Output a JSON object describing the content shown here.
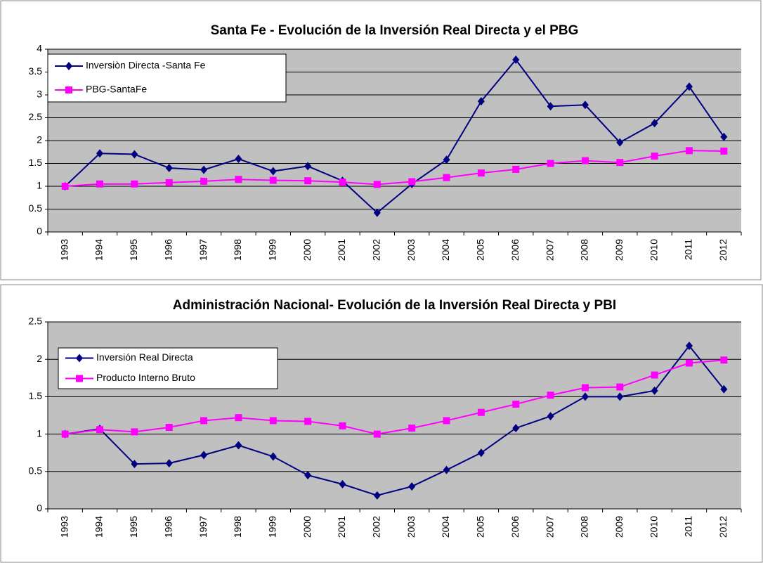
{
  "chart_data": [
    {
      "type": "line",
      "title": "Santa Fe - Evolución de la Inversión Real Directa y el PBG",
      "categories": [
        "1993",
        "1994",
        "1995",
        "1996",
        "1997",
        "1998",
        "1999",
        "2000",
        "2001",
        "2002",
        "2003",
        "2004",
        "2005",
        "2006",
        "2007",
        "2008",
        "2009",
        "2010",
        "2011",
        "2012"
      ],
      "series": [
        {
          "name": "Inversiòn Directa -Santa Fe",
          "color": "#000080",
          "marker": "diamond",
          "values": [
            1,
            1.72,
            1.7,
            1.4,
            1.36,
            1.6,
            1.33,
            1.44,
            1.12,
            0.42,
            1.05,
            1.58,
            2.86,
            3.77,
            2.75,
            2.78,
            1.96,
            2.38,
            3.18,
            2.08
          ]
        },
        {
          "name": "PBG-SantaFe",
          "color": "#ff00ff",
          "marker": "square",
          "values": [
            1,
            1.05,
            1.05,
            1.08,
            1.11,
            1.15,
            1.13,
            1.12,
            1.09,
            1.04,
            1.1,
            1.19,
            1.29,
            1.37,
            1.5,
            1.56,
            1.52,
            1.66,
            1.78,
            1.77
          ]
        }
      ],
      "ylim": [
        0,
        4
      ],
      "yticks": [
        0,
        0.5,
        1,
        1.5,
        2,
        2.5,
        3,
        3.5,
        4
      ],
      "grid": true,
      "legend": "upper left"
    },
    {
      "type": "line",
      "title": "Administración  Nacional- Evolución de la Inversión Real Directa y PBI",
      "categories": [
        "1993",
        "1994",
        "1995",
        "1996",
        "1997",
        "1998",
        "1999",
        "2000",
        "2001",
        "2002",
        "2003",
        "2004",
        "2005",
        "2006",
        "2007",
        "2008",
        "2009",
        "2010",
        "2011",
        "2012"
      ],
      "series": [
        {
          "name": "Inversión  Real Directa",
          "color": "#000080",
          "marker": "diamond",
          "values": [
            1,
            1.07,
            0.6,
            0.61,
            0.72,
            0.85,
            0.7,
            0.45,
            0.33,
            0.18,
            0.3,
            0.52,
            0.75,
            1.08,
            1.24,
            1.5,
            1.5,
            1.58,
            2.18,
            1.6
          ]
        },
        {
          "name": "Producto Interno Bruto",
          "color": "#ff00ff",
          "marker": "square",
          "values": [
            1,
            1.06,
            1.03,
            1.09,
            1.18,
            1.22,
            1.18,
            1.17,
            1.11,
            1,
            1.08,
            1.18,
            1.29,
            1.4,
            1.52,
            1.62,
            1.63,
            1.79,
            1.95,
            1.99
          ]
        }
      ],
      "ylim": [
        0,
        2.5
      ],
      "yticks": [
        0,
        0.5,
        1,
        1.5,
        2,
        2.5
      ],
      "grid": true,
      "legend": "upper left"
    }
  ]
}
